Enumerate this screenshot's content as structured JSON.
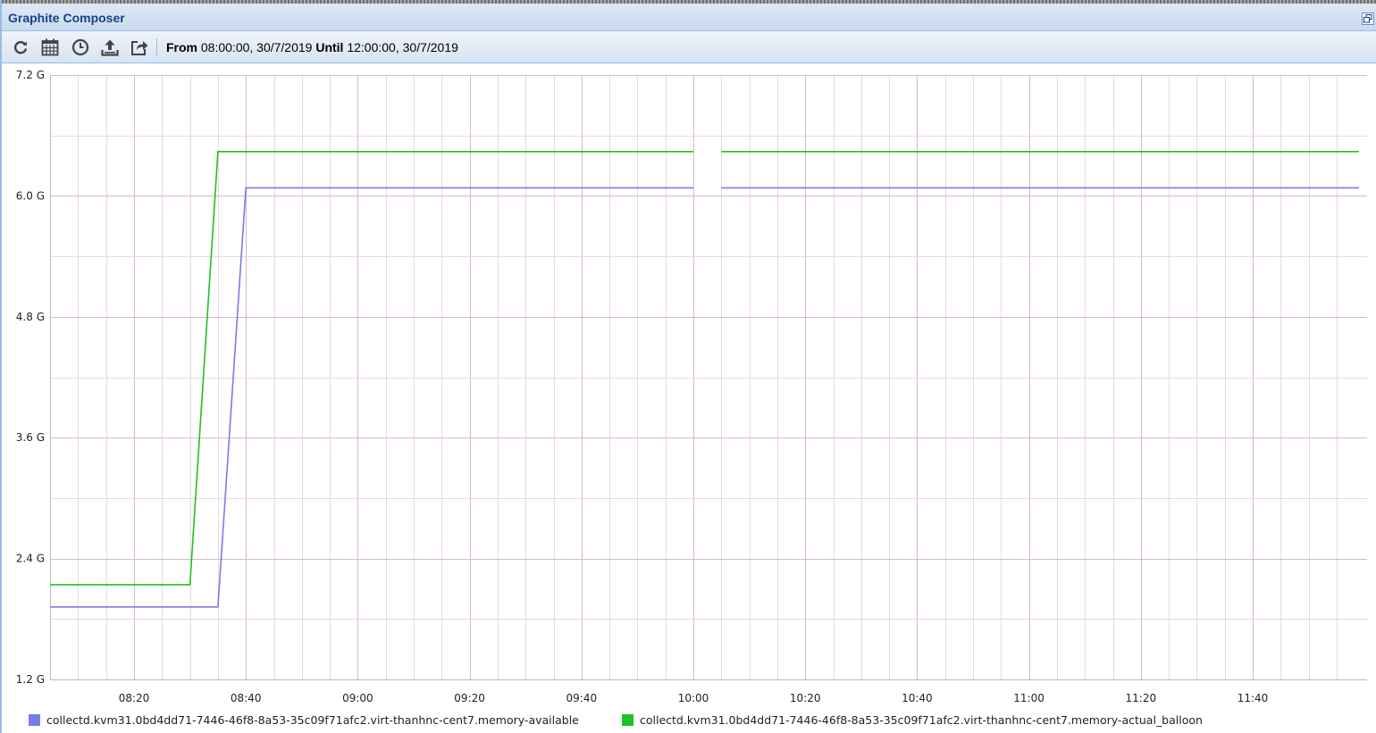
{
  "window": {
    "title": "Graphite Composer"
  },
  "toolbar": {
    "buttons": [
      {
        "name": "refresh-icon"
      },
      {
        "name": "calendar-icon"
      },
      {
        "name": "clock-icon"
      },
      {
        "name": "upload-icon"
      },
      {
        "name": "share-icon"
      }
    ],
    "from_label": "From",
    "from_value": "08:00:00, 30/7/2019",
    "until_label": "Until",
    "until_value": "12:00:00, 30/7/2019"
  },
  "colors": {
    "memory_available": "#7b7be6",
    "memory_actual_balloon": "#22c022",
    "grid_major": "#d8b8c8",
    "grid_minor": "#ead8e0",
    "accent": "#15428b"
  },
  "chart_data": {
    "type": "line",
    "x_range": [
      "08:05",
      "11:59"
    ],
    "ylim": [
      1.2,
      7.2
    ],
    "y_ticks": [
      "7.2 G",
      "6.0 G",
      "4.8 G",
      "3.6 G",
      "2.4 G",
      "1.2 G"
    ],
    "y_tick_values": [
      7.2,
      6.0,
      4.8,
      3.6,
      2.4,
      1.2
    ],
    "x_ticks": [
      "08:20",
      "08:40",
      "09:00",
      "09:20",
      "09:40",
      "10:00",
      "10:20",
      "10:40",
      "11:00",
      "11:20",
      "11:40"
    ],
    "grid": true,
    "legend_placement": "bottom",
    "series": [
      {
        "name": "collectd.kvm31.0bd4dd71-7446-46f8-8a53-35c09f71afc2.virt-thanhnc-cent7.memory-available",
        "color": "#7b7be6",
        "segments": [
          [
            [
              "08:05",
              1.92
            ],
            [
              "08:35",
              1.92
            ],
            [
              "08:40",
              6.08
            ],
            [
              "10:00",
              6.08
            ]
          ],
          [
            [
              "10:05",
              6.08
            ],
            [
              "11:59",
              6.08
            ]
          ]
        ]
      },
      {
        "name": "collectd.kvm31.0bd4dd71-7446-46f8-8a53-35c09f71afc2.virt-thanhnc-cent7.memory-actual_balloon",
        "color": "#22c022",
        "segments": [
          [
            [
              "08:05",
              2.14
            ],
            [
              "08:30",
              2.14
            ],
            [
              "08:35",
              6.44
            ],
            [
              "10:00",
              6.44
            ]
          ],
          [
            [
              "10:05",
              6.44
            ],
            [
              "11:59",
              6.44
            ]
          ]
        ]
      }
    ]
  }
}
